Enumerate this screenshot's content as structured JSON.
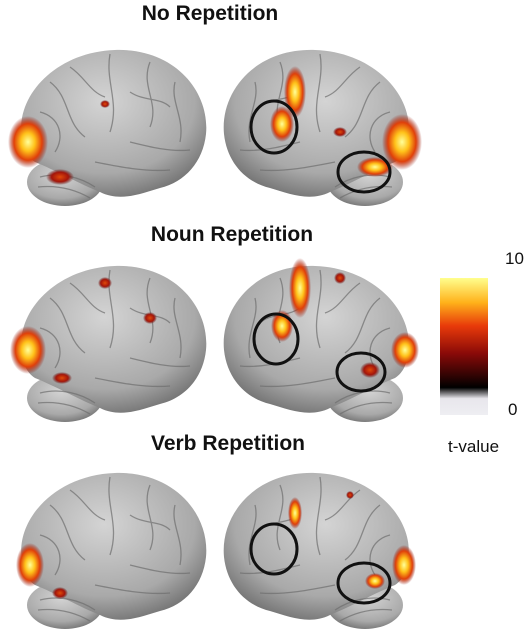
{
  "panels": [
    {
      "title": "No Repetition"
    },
    {
      "title": "Noun Repetition"
    },
    {
      "title": "Verb Repetition"
    }
  ],
  "colorbar": {
    "max_label": "10",
    "min_label": "0",
    "label": "t-value"
  }
}
